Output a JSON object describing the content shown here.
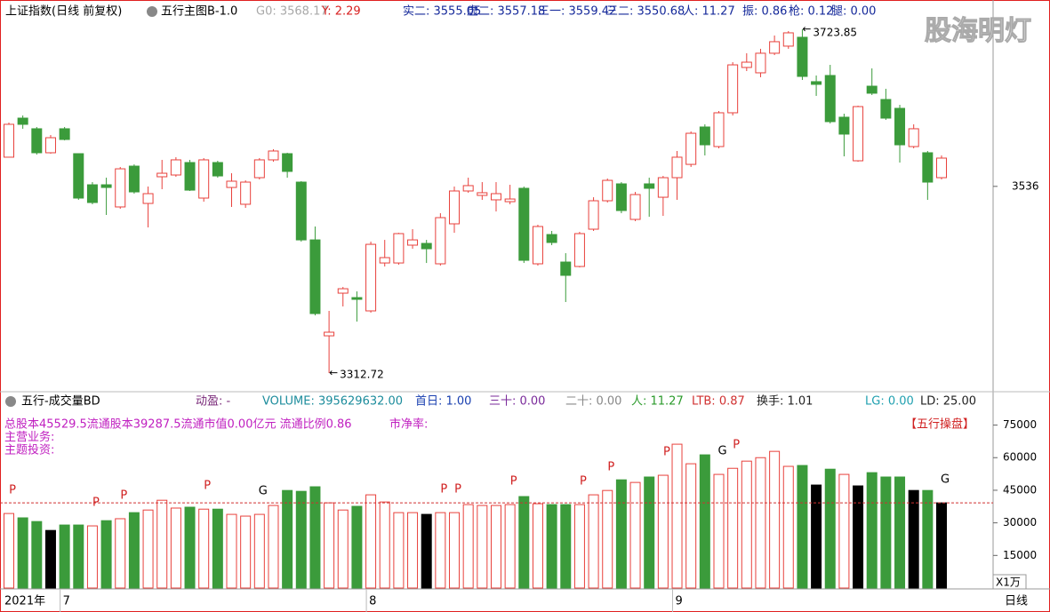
{
  "watermark": "股海明灯",
  "chart_data": [
    {
      "type": "candlestick",
      "title": "上证指数(日线 前复权)",
      "indicator": "五行主图B-1.0",
      "readouts": [
        {
          "text": "G0: 3568.17",
          "color": "#a8a8a8"
        },
        {
          "text": "Y: 2.29",
          "color": "#d82020"
        },
        {
          "text": "实二: 3555.05",
          "color": "#14289a"
        },
        {
          "text": "虚二: 3557.18",
          "color": "#14289a"
        },
        {
          "text": "三一: 3559.42",
          "color": "#14289a"
        },
        {
          "text": "三二: 3550.68",
          "color": "#14289a"
        },
        {
          "text": "人: 11.27",
          "color": "#14289a"
        },
        {
          "text": "振: 0.86",
          "color": "#14289a"
        },
        {
          "text": "枪: 0.12",
          "color": "#14289a"
        },
        {
          "text": "腿: 0.00",
          "color": "#14289a"
        }
      ],
      "up_color": "#e8413c",
      "down_color": "#3b9b3b",
      "ylim": [
        3291.5,
        3735.5
      ],
      "yticks": [
        3536
      ],
      "open": [
        3570.9,
        3617.6,
        3604.9,
        3576.2,
        3604.9,
        3575.1,
        3537.9,
        3537.9,
        3511.4,
        3560.2,
        3515.6,
        3547.5,
        3549.6,
        3564.5,
        3522.0,
        3564.5,
        3534.7,
        3514.6,
        3546.4,
        3567.7,
        3575.1,
        3541.1,
        3472.0,
        3357.3,
        3408.3,
        3403.0,
        3387.1,
        3444.4,
        3444.4,
        3465.7,
        3467.8,
        3443.4,
        3491.2,
        3530.5,
        3525.2,
        3519.9,
        3517.7,
        3533.7,
        3443.4,
        3478.4,
        3445.5,
        3440.2,
        3484.8,
        3518.8,
        3539.0,
        3496.5,
        3539.0,
        3523.0,
        3546.4,
        3562.3,
        3607.0,
        3583.6,
        3624.0,
        3678.2,
        3671.8,
        3695.2,
        3703.7,
        3714.3,
        3661.2,
        3668.6,
        3618.7,
        3566.6,
        3655.8,
        3639.9,
        3629.3,
        3583.6,
        3576.2,
        3546.4
      ],
      "high": [
        3612.3,
        3620.8,
        3607.0,
        3597.4,
        3607.0,
        3575.1,
        3541.1,
        3546.4,
        3559.2,
        3562.3,
        3535.8,
        3567.7,
        3570.9,
        3567.7,
        3569.8,
        3566.6,
        3551.7,
        3543.2,
        3569.8,
        3580.4,
        3576.2,
        3542.2,
        3488.0,
        3387.1,
        3415.7,
        3410.4,
        3469.9,
        3472.0,
        3480.5,
        3484.8,
        3472.0,
        3503.9,
        3535.8,
        3546.4,
        3541.1,
        3541.1,
        3537.9,
        3535.8,
        3490.1,
        3482.7,
        3456.1,
        3481.6,
        3523.0,
        3545.4,
        3541.1,
        3529.4,
        3546.4,
        3548.5,
        3578.3,
        3601.7,
        3610.2,
        3626.1,
        3684.5,
        3695.2,
        3700.5,
        3716.4,
        3721.7,
        3723.85,
        3668.6,
        3681.3,
        3622.9,
        3632.5,
        3677.1,
        3652.7,
        3633.5,
        3610.2,
        3578.3,
        3573.0
      ],
      "low": [
        3570.9,
        3604.9,
        3574.0,
        3575.1,
        3591.0,
        3519.9,
        3514.6,
        3501.8,
        3509.2,
        3527.3,
        3486.9,
        3532.6,
        3547.5,
        3530.5,
        3517.7,
        3546.4,
        3511.4,
        3510.3,
        3544.3,
        3565.5,
        3546.4,
        3469.9,
        3381.7,
        3312.72,
        3392.4,
        3374.3,
        3385.0,
        3440.2,
        3442.3,
        3461.4,
        3444.4,
        3441.3,
        3480.5,
        3528.4,
        3519.9,
        3506.0,
        3514.6,
        3444.4,
        3441.3,
        3465.7,
        3397.7,
        3439.1,
        3482.7,
        3516.7,
        3503.9,
        3494.4,
        3499.7,
        3500.7,
        3519.9,
        3559.2,
        3573.0,
        3581.5,
        3620.8,
        3673.9,
        3666.5,
        3693.0,
        3700.5,
        3663.3,
        3644.2,
        3611.2,
        3571.9,
        3565.5,
        3645.2,
        3615.5,
        3564.5,
        3581.5,
        3519.9,
        3544.3
      ],
      "close": [
        3610.2,
        3610.2,
        3576.2,
        3594.2,
        3592.1,
        3522.0,
        3516.7,
        3534.7,
        3557.0,
        3529.4,
        3527.3,
        3551.7,
        3567.7,
        3531.5,
        3567.7,
        3548.5,
        3542.2,
        3541.1,
        3567.7,
        3578.3,
        3553.9,
        3472.0,
        3383.9,
        3361.6,
        3413.6,
        3400.9,
        3466.7,
        3450.8,
        3479.5,
        3472.0,
        3461.4,
        3498.6,
        3530.5,
        3536.9,
        3528.4,
        3527.3,
        3520.9,
        3447.6,
        3488.0,
        3468.9,
        3429.6,
        3479.5,
        3518.8,
        3543.2,
        3507.1,
        3526.2,
        3533.7,
        3546.4,
        3570.9,
        3599.5,
        3585.7,
        3624.0,
        3681.3,
        3684.5,
        3695.2,
        3709.0,
        3719.6,
        3667.5,
        3658.0,
        3613.4,
        3598.5,
        3631.4,
        3647.4,
        3617.6,
        3585.7,
        3604.9,
        3541.1,
        3569.8
      ],
      "extremes": [
        {
          "index": 57,
          "field": "high"
        },
        {
          "index": 23,
          "field": "low"
        }
      ]
    },
    {
      "type": "bar",
      "title": "五行-成交量BD",
      "readouts": [
        {
          "text": "动盈: -",
          "color": "#7a2a7a"
        },
        {
          "text": "VOLUME: 395629632.00",
          "color": "#1c8c9c"
        },
        {
          "text": "首日: 1.00",
          "color": "#1a40b0"
        },
        {
          "text": "三十: 0.00",
          "color": "#7a2a9a"
        },
        {
          "text": "二十: 0.00",
          "color": "#888888"
        },
        {
          "text": "人: 11.27",
          "color": "#2a9a2a"
        },
        {
          "text": "LTB: 0.87",
          "color": "#d03030"
        },
        {
          "text": "换手: 1.01",
          "color": "#222222"
        },
        {
          "text": "LG: 0.00",
          "color": "#20a0b0"
        },
        {
          "text": "LD: 25.00",
          "color": "#222222"
        }
      ],
      "info_lines": [
        "总股本45529.5流通股本39287.5流通市值0.00亿元 流通比例0.86",
        "主营业务:",
        "主题投资:"
      ],
      "info_extra": "市净率:",
      "badge": "【五行操盘】",
      "year": "2021年",
      "period": "日线",
      "unit": "X1万",
      "categories": [
        null,
        null,
        null,
        null,
        "7",
        null,
        null,
        null,
        null,
        null,
        null,
        null,
        null,
        null,
        null,
        null,
        null,
        null,
        null,
        null,
        null,
        null,
        null,
        null,
        null,
        null,
        "8",
        null,
        null,
        null,
        null,
        null,
        null,
        null,
        null,
        null,
        null,
        null,
        null,
        null,
        null,
        null,
        null,
        null,
        null,
        null,
        null,
        null,
        "9",
        null,
        null,
        null,
        null,
        null,
        null,
        null,
        null,
        null,
        null,
        null,
        null,
        null,
        null,
        null,
        null,
        null,
        null,
        null
      ],
      "values": [
        34300,
        32300,
        30600,
        26500,
        29000,
        29000,
        28600,
        31000,
        31900,
        34700,
        35900,
        40400,
        36800,
        37200,
        36300,
        36300,
        33900,
        33100,
        33900,
        38000,
        44900,
        44500,
        46600,
        39200,
        35900,
        37600,
        42900,
        39600,
        34700,
        34700,
        33900,
        34700,
        34700,
        38400,
        38000,
        38000,
        38400,
        42100,
        38800,
        38400,
        38400,
        38400,
        42900,
        44900,
        49800,
        48600,
        51100,
        51900,
        66200,
        57200,
        61300,
        52300,
        55100,
        58400,
        60000,
        62900,
        56000,
        56400,
        47400,
        54700,
        52300,
        47000,
        53100,
        51100,
        51100,
        44900,
        44900,
        39200
      ],
      "colors": [
        "#e8413c",
        "#3b9b3b",
        "#3b9b3b",
        "#000000",
        "#3b9b3b",
        "#3b9b3b",
        "#e8413c",
        "#3b9b3b",
        "#e8413c",
        "#3b9b3b",
        "#e8413c",
        "#e8413c",
        "#e8413c",
        "#3b9b3b",
        "#e8413c",
        "#3b9b3b",
        "#e8413c",
        "#e8413c",
        "#e8413c",
        "#e8413c",
        "#3b9b3b",
        "#3b9b3b",
        "#3b9b3b",
        "#e8413c",
        "#e8413c",
        "#3b9b3b",
        "#e8413c",
        "#e8413c",
        "#e8413c",
        "#e8413c",
        "#000000",
        "#e8413c",
        "#e8413c",
        "#e8413c",
        "#e8413c",
        "#e8413c",
        "#e8413c",
        "#3b9b3b",
        "#e8413c",
        "#3b9b3b",
        "#3b9b3b",
        "#e8413c",
        "#e8413c",
        "#e8413c",
        "#3b9b3b",
        "#e8413c",
        "#3b9b3b",
        "#e8413c",
        "#e8413c",
        "#e8413c",
        "#3b9b3b",
        "#e8413c",
        "#e8413c",
        "#e8413c",
        "#e8413c",
        "#e8413c",
        "#e8413c",
        "#3b9b3b",
        "#000000",
        "#3b9b3b",
        "#e8413c",
        "#000000",
        "#3b9b3b",
        "#3b9b3b",
        "#3b9b3b",
        "#000000",
        "#3b9b3b",
        "#000000"
      ],
      "hollow_color": "#e8413c",
      "reference_line": {
        "value": 39200,
        "color": "#d03030"
      },
      "markers": [
        {
          "index": 0,
          "label": "P",
          "color": "#d02020"
        },
        {
          "index": 6,
          "label": "P",
          "color": "#d02020"
        },
        {
          "index": 8,
          "label": "P",
          "color": "#d02020"
        },
        {
          "index": 14,
          "label": "P",
          "color": "#d02020"
        },
        {
          "index": 18,
          "label": "G",
          "color": "#000000"
        },
        {
          "index": 31,
          "label": "P",
          "color": "#d02020"
        },
        {
          "index": 32,
          "label": "P",
          "color": "#d02020"
        },
        {
          "index": 36,
          "label": "P",
          "color": "#d02020"
        },
        {
          "index": 41,
          "label": "P",
          "color": "#d02020"
        },
        {
          "index": 43,
          "label": "P",
          "color": "#d02020"
        },
        {
          "index": 47,
          "label": "P",
          "color": "#d02020"
        },
        {
          "index": 51,
          "label": "G",
          "color": "#000000"
        },
        {
          "index": 52,
          "label": "P",
          "color": "#d02020"
        },
        {
          "index": 67,
          "label": "G",
          "color": "#000000"
        }
      ],
      "ylim": [
        0,
        78500
      ],
      "yticks": [
        15000,
        30000,
        45000,
        60000,
        75000
      ]
    }
  ]
}
